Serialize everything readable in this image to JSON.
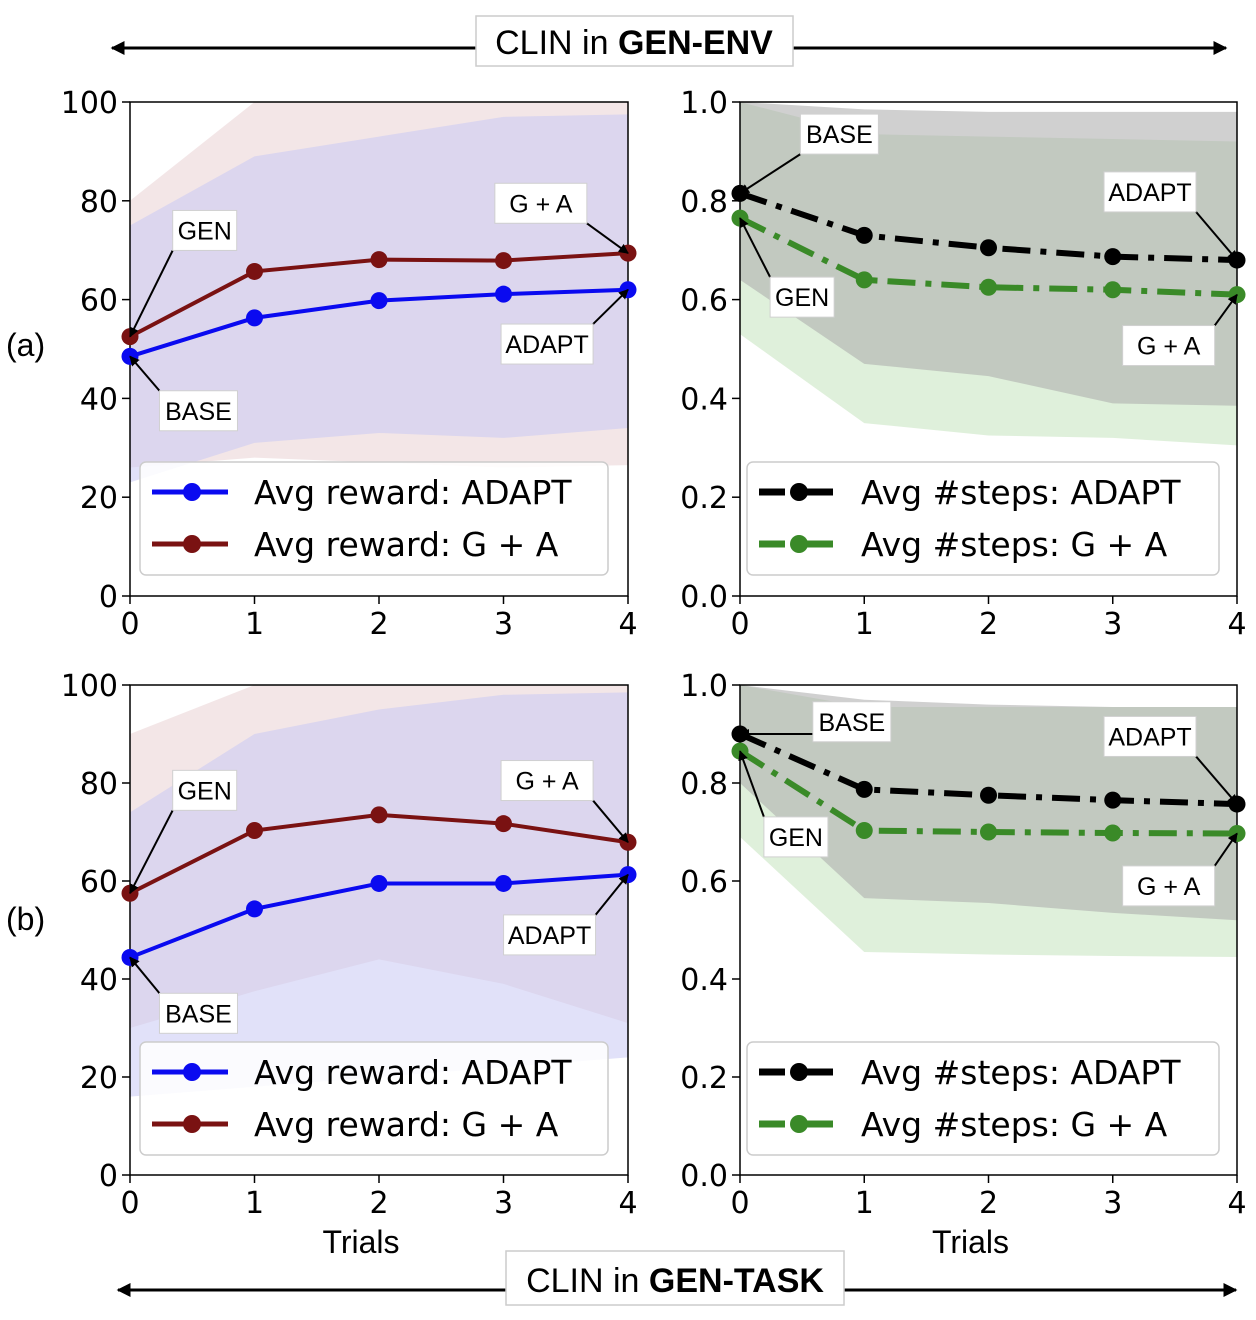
{
  "banners": {
    "top": {
      "prefix": "CLIN in ",
      "bold": "GEN-ENV"
    },
    "bottom": {
      "prefix": "CLIN in ",
      "bold": "GEN-TASK"
    }
  },
  "row_labels": [
    "(a)",
    "(b)"
  ],
  "colors": {
    "adapt_reward": "#0a0af0",
    "ga_reward": "#7a1212",
    "adapt_steps": "#000000",
    "ga_steps": "#3a8a28",
    "band_adapt_reward": "#c8c8f4",
    "band_ga_reward": "#e8cdd0",
    "band_adapt_steps": "#a9a9a9",
    "band_ga_steps": "#bfe2b8"
  },
  "chart_data": [
    {
      "type": "line",
      "panel": "a-left",
      "x": [
        0,
        1,
        2,
        3,
        4
      ],
      "xlim": [
        0,
        4
      ],
      "ylim": [
        0,
        100
      ],
      "xticks": [
        "0",
        "1",
        "2",
        "3",
        "4"
      ],
      "yticks": [
        "0",
        "20",
        "40",
        "60",
        "80",
        "100"
      ],
      "xlabel": "",
      "legend_position": "lower-center",
      "series": [
        {
          "name": "Avg reward: ADAPT",
          "values": [
            48.5,
            56.3,
            59.8,
            61.1,
            62.0
          ],
          "band_lower": [
            23,
            31,
            33,
            32,
            34
          ],
          "band_upper": [
            75,
            89,
            93,
            97,
            97.5
          ],
          "style": "solid",
          "color_key": "adapt_reward",
          "band_key": "band_adapt_reward"
        },
        {
          "name": "Avg reward: G + A",
          "values": [
            52.5,
            65.7,
            68.1,
            67.9,
            69.4
          ],
          "band_lower": [
            26,
            28,
            27,
            26,
            26.5
          ],
          "band_upper": [
            80,
            100,
            100,
            100,
            100
          ],
          "style": "solid",
          "color_key": "ga_reward",
          "band_key": "band_ga_reward"
        }
      ],
      "annotations": [
        {
          "text": "GEN",
          "xy": [
            0,
            52.5
          ],
          "text_pos": [
            0.6,
            74
          ]
        },
        {
          "text": "BASE",
          "xy": [
            0,
            48.5
          ],
          "text_pos": [
            0.55,
            37.5
          ]
        },
        {
          "text": "G + A",
          "xy": [
            4,
            69.4
          ],
          "text_pos": [
            3.3,
            79.5
          ]
        },
        {
          "text": "ADAPT",
          "xy": [
            4,
            62.0
          ],
          "text_pos": [
            3.35,
            51
          ]
        }
      ]
    },
    {
      "type": "line",
      "panel": "a-right",
      "x": [
        0,
        1,
        2,
        3,
        4
      ],
      "xlim": [
        0,
        4
      ],
      "ylim": [
        0,
        1
      ],
      "xticks": [
        "0",
        "1",
        "2",
        "3",
        "4"
      ],
      "yticks": [
        "0.0",
        "0.2",
        "0.4",
        "0.6",
        "0.8",
        "1.0"
      ],
      "xlabel": "",
      "legend_position": "lower-center",
      "series": [
        {
          "name": "Avg #steps: ADAPT",
          "values": [
            0.815,
            0.73,
            0.705,
            0.687,
            0.68
          ],
          "band_lower": [
            0.64,
            0.47,
            0.445,
            0.39,
            0.385
          ],
          "band_upper": [
            1.0,
            0.985,
            0.98,
            0.98,
            0.98
          ],
          "style": "dashdot",
          "color_key": "adapt_steps",
          "band_key": "band_adapt_steps"
        },
        {
          "name": "Avg #steps: G + A",
          "values": [
            0.765,
            0.64,
            0.625,
            0.62,
            0.61
          ],
          "band_lower": [
            0.53,
            0.35,
            0.325,
            0.32,
            0.305
          ],
          "band_upper": [
            1.0,
            0.935,
            0.93,
            0.925,
            0.92
          ],
          "style": "dashdot",
          "color_key": "ga_steps",
          "band_key": "band_ga_steps"
        }
      ],
      "annotations": [
        {
          "text": "BASE",
          "xy": [
            0,
            0.815
          ],
          "text_pos": [
            0.8,
            0.935
          ]
        },
        {
          "text": "GEN",
          "xy": [
            0,
            0.765
          ],
          "text_pos": [
            0.5,
            0.605
          ]
        },
        {
          "text": "ADAPT",
          "xy": [
            4,
            0.68
          ],
          "text_pos": [
            3.3,
            0.818
          ]
        },
        {
          "text": "G + A",
          "xy": [
            4,
            0.61
          ],
          "text_pos": [
            3.45,
            0.507
          ]
        }
      ]
    },
    {
      "type": "line",
      "panel": "b-left",
      "x": [
        0,
        1,
        2,
        3,
        4
      ],
      "xlim": [
        0,
        4
      ],
      "ylim": [
        0,
        100
      ],
      "xticks": [
        "0",
        "1",
        "2",
        "3",
        "4"
      ],
      "yticks": [
        "0",
        "20",
        "40",
        "60",
        "80",
        "100"
      ],
      "xlabel": "Trials",
      "legend_position": "lower-center",
      "series": [
        {
          "name": "Avg reward: ADAPT",
          "values": [
            44.4,
            54.3,
            59.5,
            59.5,
            61.3
          ],
          "band_lower": [
            16,
            18,
            20,
            22,
            24
          ],
          "band_upper": [
            74,
            90,
            95,
            98,
            98.5
          ],
          "style": "solid",
          "color_key": "adapt_reward",
          "band_key": "band_adapt_reward"
        },
        {
          "name": "Avg reward: G + A",
          "values": [
            57.5,
            70.3,
            73.5,
            71.7,
            67.9
          ],
          "band_lower": [
            30,
            37.5,
            44,
            39,
            31
          ],
          "band_upper": [
            90,
            100,
            100,
            100,
            100
          ],
          "style": "solid",
          "color_key": "ga_reward",
          "band_key": "band_ga_reward"
        }
      ],
      "annotations": [
        {
          "text": "GEN",
          "xy": [
            0,
            57.5
          ],
          "text_pos": [
            0.6,
            78.5
          ]
        },
        {
          "text": "BASE",
          "xy": [
            0,
            44.4
          ],
          "text_pos": [
            0.55,
            33
          ]
        },
        {
          "text": "G + A",
          "xy": [
            4,
            67.9
          ],
          "text_pos": [
            3.35,
            80.5
          ]
        },
        {
          "text": "ADAPT",
          "xy": [
            4,
            61.3
          ],
          "text_pos": [
            3.37,
            49
          ]
        }
      ]
    },
    {
      "type": "line",
      "panel": "b-right",
      "x": [
        0,
        1,
        2,
        3,
        4
      ],
      "xlim": [
        0,
        4
      ],
      "ylim": [
        0,
        1
      ],
      "xticks": [
        "0",
        "1",
        "2",
        "3",
        "4"
      ],
      "yticks": [
        "0.0",
        "0.2",
        "0.4",
        "0.6",
        "0.8",
        "1.0"
      ],
      "xlabel": "Trials",
      "legend_position": "lower-center",
      "series": [
        {
          "name": "Avg #steps: ADAPT",
          "values": [
            0.9,
            0.787,
            0.775,
            0.765,
            0.757
          ],
          "band_lower": [
            0.8,
            0.565,
            0.555,
            0.535,
            0.52
          ],
          "band_upper": [
            1.0,
            0.97,
            0.96,
            0.955,
            0.955
          ],
          "style": "dashdot",
          "color_key": "adapt_steps",
          "band_key": "band_adapt_steps"
        },
        {
          "name": "Avg #steps: G + A",
          "values": [
            0.865,
            0.703,
            0.7,
            0.698,
            0.697
          ],
          "band_lower": [
            0.69,
            0.455,
            0.45,
            0.447,
            0.445
          ],
          "band_upper": [
            1.0,
            0.955,
            0.955,
            0.955,
            0.955
          ],
          "style": "dashdot",
          "color_key": "ga_steps",
          "band_key": "band_ga_steps"
        }
      ],
      "annotations": [
        {
          "text": "BASE",
          "xy": [
            0,
            0.9
          ],
          "text_pos": [
            0.9,
            0.925
          ]
        },
        {
          "text": "GEN",
          "xy": [
            0,
            0.865
          ],
          "text_pos": [
            0.45,
            0.69
          ]
        },
        {
          "text": "ADAPT",
          "xy": [
            4,
            0.757
          ],
          "text_pos": [
            3.3,
            0.895
          ]
        },
        {
          "text": "G + A",
          "xy": [
            4,
            0.697
          ],
          "text_pos": [
            3.45,
            0.59
          ]
        }
      ]
    }
  ]
}
